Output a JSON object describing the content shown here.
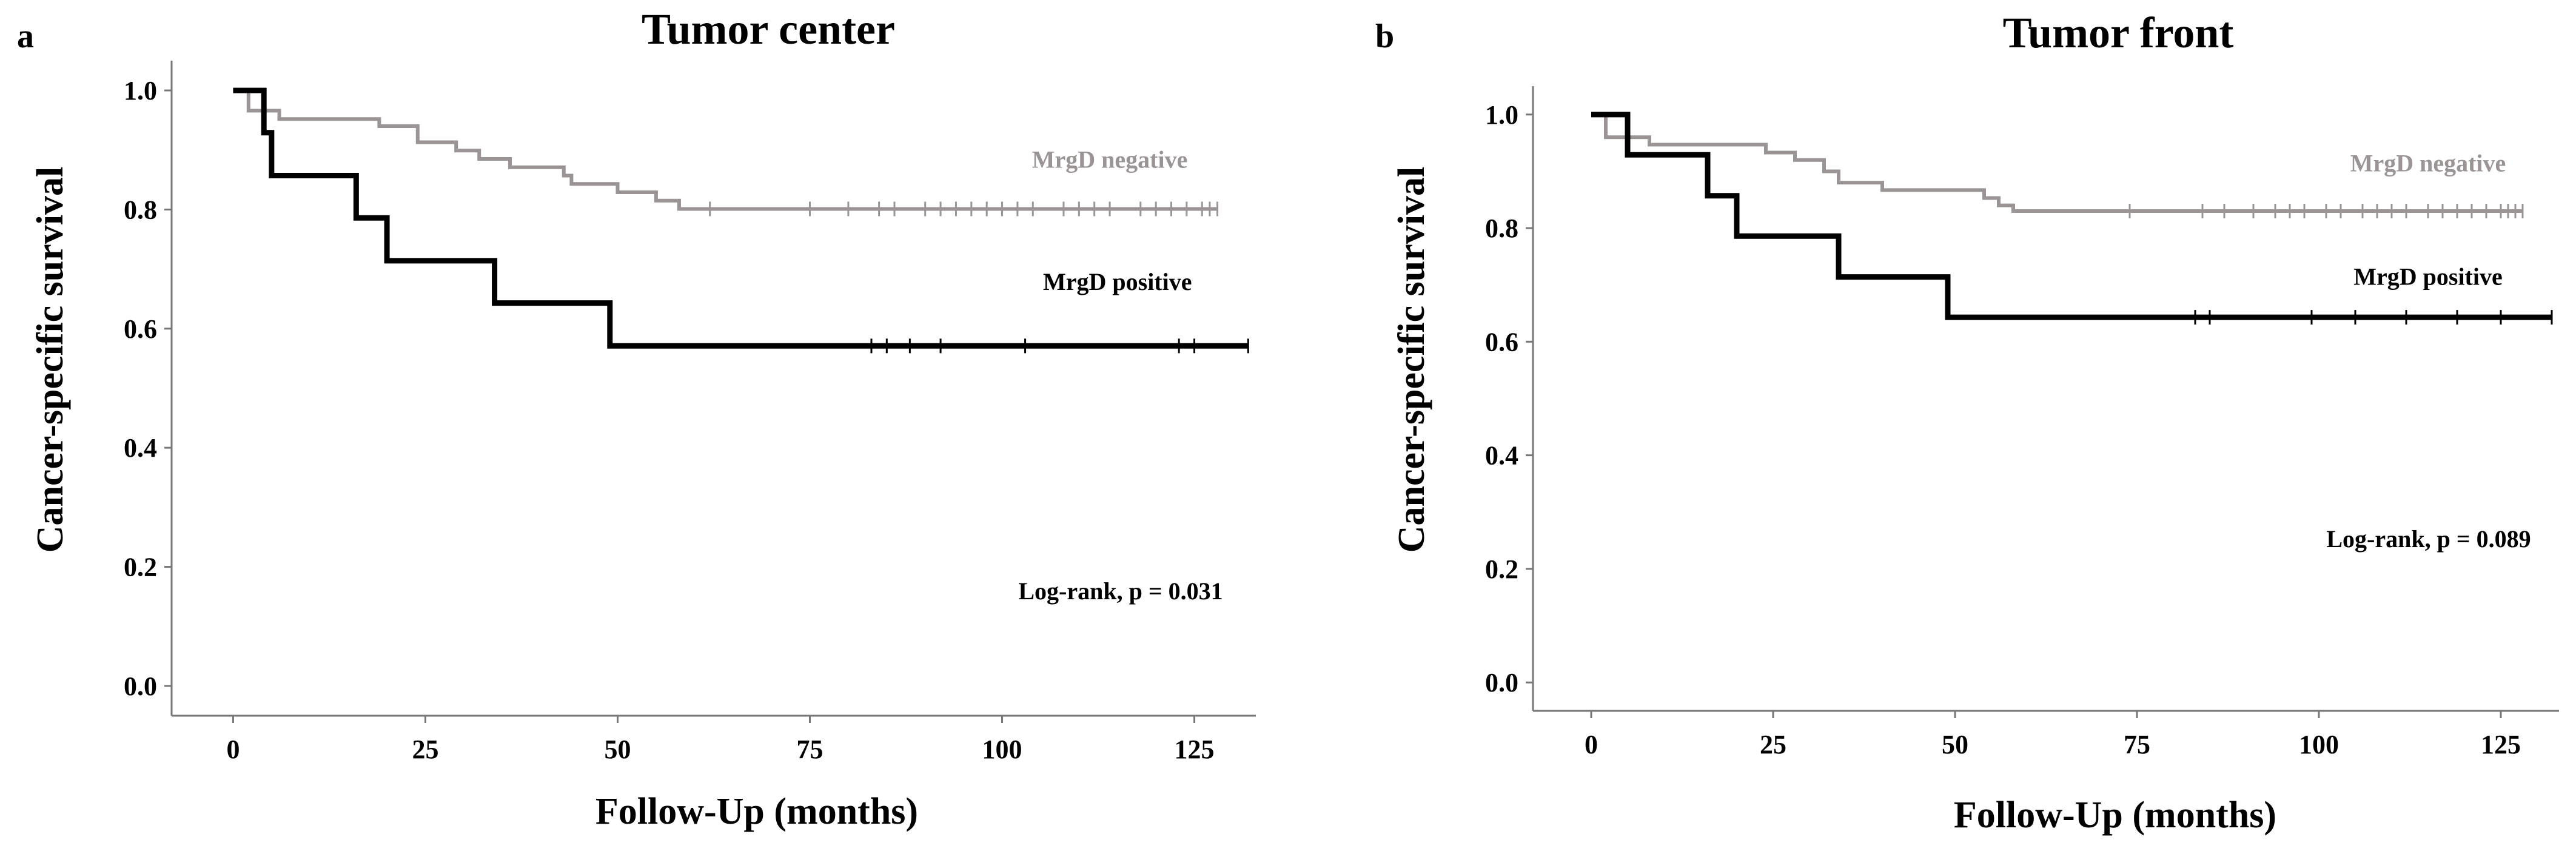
{
  "chart_data": [
    {
      "type": "line",
      "panel": "a",
      "title": "Tumor center",
      "xlabel": "Follow-Up (months)",
      "ylabel": "Cancer-specific survival",
      "xlim": [
        -8,
        133
      ],
      "ylim": [
        -0.05,
        1.05
      ],
      "xticks": [
        0,
        25,
        50,
        75,
        100,
        125
      ],
      "xtick_labels": [
        "0",
        "25",
        "50",
        "75",
        "100",
        "125"
      ],
      "yticks": [
        0,
        0.2,
        0.4,
        0.6,
        0.8,
        1.0
      ],
      "ytick_labels": [
        "0.0",
        "0.2",
        "0.4",
        "0.6",
        "0.8",
        "1.0"
      ],
      "annotation": "Log-rank, p = 0.031",
      "series": [
        {
          "name": "MrgD negative",
          "color": "#9a9494",
          "steps": [
            [
              0,
              1.0
            ],
            [
              2,
              0.966
            ],
            [
              6,
              0.952
            ],
            [
              19,
              0.94
            ],
            [
              24,
              0.913
            ],
            [
              29,
              0.899
            ],
            [
              32,
              0.885
            ],
            [
              36,
              0.871
            ],
            [
              43,
              0.857
            ],
            [
              44,
              0.843
            ],
            [
              50,
              0.829
            ],
            [
              55,
              0.815
            ],
            [
              58,
              0.801
            ],
            [
              128,
              0.801
            ]
          ],
          "censored": [
            62,
            75,
            80,
            84,
            86,
            90,
            92,
            94,
            96,
            98,
            100,
            102,
            104,
            108,
            110,
            112,
            114,
            118,
            120,
            122,
            124,
            126,
            127,
            128
          ],
          "label_at": [
            114,
            0.87
          ]
        },
        {
          "name": "MrgD positive",
          "color": "#000000",
          "steps": [
            [
              0,
              1.0
            ],
            [
              4,
              0.929
            ],
            [
              5,
              0.857
            ],
            [
              16,
              0.786
            ],
            [
              20,
              0.714
            ],
            [
              34,
              0.643
            ],
            [
              49,
              0.571
            ],
            [
              132,
              0.571
            ]
          ],
          "censored": [
            83,
            85,
            88,
            92,
            103,
            123,
            125,
            132
          ],
          "label_at": [
            115,
            0.665
          ]
        }
      ]
    },
    {
      "type": "line",
      "panel": "b",
      "title": "Tumor front",
      "xlabel": "Follow-Up (months)",
      "ylabel": "Cancer-specific survival",
      "xlim": [
        -8,
        133
      ],
      "ylim": [
        -0.05,
        1.05
      ],
      "xticks": [
        0,
        25,
        50,
        75,
        100,
        125
      ],
      "xtick_labels": [
        "0",
        "25",
        "50",
        "75",
        "100",
        "125"
      ],
      "yticks": [
        0,
        0.2,
        0.4,
        0.6,
        0.8,
        1.0
      ],
      "ytick_labels": [
        "0.0",
        "0.2",
        "0.4",
        "0.6",
        "0.8",
        "1.0"
      ],
      "annotation": "Log-rank, p = 0.089",
      "series": [
        {
          "name": "MrgD negative",
          "color": "#9a9494",
          "steps": [
            [
              0,
              1.0
            ],
            [
              2,
              0.96
            ],
            [
              8,
              0.947
            ],
            [
              24,
              0.933
            ],
            [
              28,
              0.92
            ],
            [
              32,
              0.9
            ],
            [
              34,
              0.88
            ],
            [
              40,
              0.867
            ],
            [
              54,
              0.853
            ],
            [
              56,
              0.84
            ],
            [
              58,
              0.83
            ],
            [
              128,
              0.83
            ]
          ],
          "censored": [
            74,
            84,
            87,
            91,
            94,
            96,
            98,
            101,
            103,
            106,
            108,
            110,
            112,
            115,
            117,
            119,
            121,
            123,
            125,
            126,
            127,
            128
          ],
          "label_at": [
            115,
            0.9
          ]
        },
        {
          "name": "MrgD positive",
          "color": "#000000",
          "steps": [
            [
              0,
              1.0
            ],
            [
              5,
              0.929
            ],
            [
              16,
              0.857
            ],
            [
              20,
              0.786
            ],
            [
              34,
              0.714
            ],
            [
              49,
              0.643
            ],
            [
              132,
              0.643
            ]
          ],
          "censored": [
            83,
            85,
            99,
            105,
            112,
            119,
            125,
            132
          ],
          "label_at": [
            115,
            0.7
          ]
        }
      ]
    }
  ]
}
